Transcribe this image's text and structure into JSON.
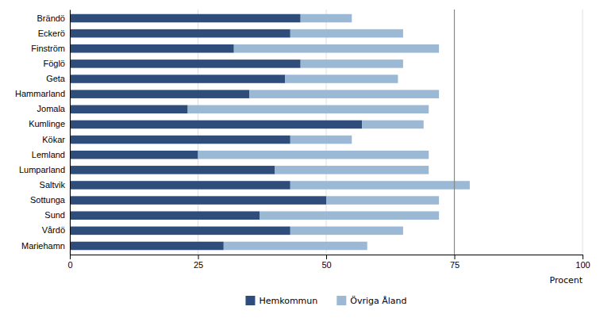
{
  "chart_data": {
    "type": "bar",
    "orientation": "horizontal",
    "stacked": true,
    "categories": [
      "Brändö",
      "Eckerö",
      "Finström",
      "Föglö",
      "Geta",
      "Hammarland",
      "Jomala",
      "Kumlinge",
      "Kökar",
      "Lemland",
      "Lumparland",
      "Saltvik",
      "Sottunga",
      "Sund",
      "Vårdö",
      "Mariehamn"
    ],
    "series": [
      {
        "name": "Hemkommun",
        "color": "#2E4D7B",
        "values": [
          45,
          43,
          32,
          45,
          42,
          35,
          23,
          57,
          43,
          25,
          40,
          43,
          50,
          37,
          43,
          30
        ]
      },
      {
        "name": "Övriga Åland",
        "color": "#9BB8D4",
        "values": [
          10,
          22,
          40,
          20,
          22,
          37,
          47,
          12,
          12,
          45,
          30,
          35,
          22,
          35,
          22,
          28
        ]
      }
    ],
    "xlabel": "Procent",
    "xlim": [
      0,
      100
    ],
    "xticks": [
      0,
      25,
      50,
      75,
      100
    ],
    "vline": 75,
    "grid": true,
    "legend": "bottom"
  }
}
